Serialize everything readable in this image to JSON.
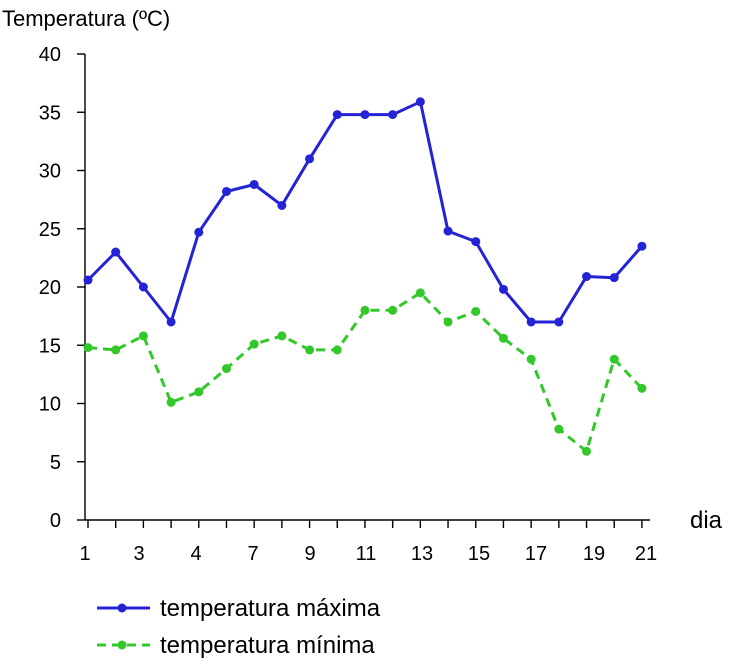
{
  "chart_data": {
    "type": "line",
    "ylabel": "Temperatura (ºC)",
    "xlabel": "dia",
    "ylim": [
      0,
      40
    ],
    "yticks": [
      0,
      5,
      10,
      15,
      20,
      25,
      30,
      35,
      40
    ],
    "xticks": [
      "1",
      "3",
      "4",
      "7",
      "9",
      "11",
      "13",
      "15",
      "17",
      "19",
      "21"
    ],
    "x": [
      1,
      2,
      3,
      4,
      5,
      6,
      7,
      8,
      9,
      10,
      11,
      12,
      13,
      14,
      15,
      16,
      17,
      18,
      19,
      20,
      21
    ],
    "grid": false,
    "series": [
      {
        "name": "temperatura máxima",
        "color": "#2424d6",
        "style": "solid",
        "values": [
          20.6,
          23.0,
          20.0,
          17.0,
          24.7,
          28.2,
          28.8,
          27.0,
          31.0,
          34.8,
          34.8,
          34.8,
          35.9,
          24.8,
          23.9,
          19.8,
          17.0,
          17.0,
          20.9,
          20.8,
          23.5
        ]
      },
      {
        "name": "temperatura mínima",
        "color": "#33c82a",
        "style": "dashed",
        "values": [
          14.8,
          14.6,
          15.8,
          10.1,
          11.0,
          13.0,
          15.1,
          15.8,
          14.6,
          14.6,
          18.0,
          18.0,
          19.5,
          17.0,
          17.9,
          15.6,
          13.8,
          7.8,
          5.9,
          13.8,
          11.3
        ]
      }
    ]
  }
}
